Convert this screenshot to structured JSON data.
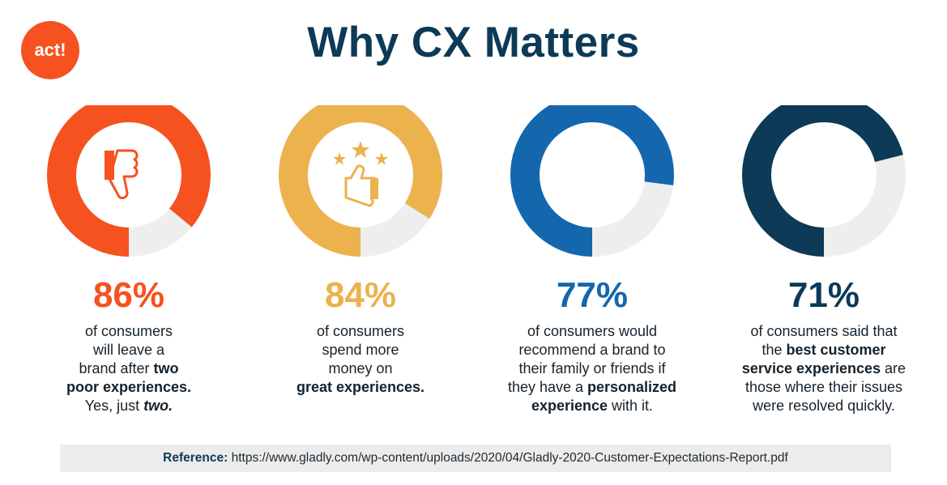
{
  "brand": {
    "logo_text": "act!",
    "logo_color": "#f5521f"
  },
  "title": "Why CX Matters",
  "chart_data": {
    "type": "donut",
    "title": "Why CX Matters",
    "track_color": "#eeeeee",
    "series": [
      {
        "value": 86,
        "label": "86%",
        "color": "#f5521f",
        "icon": "thumbs-down-icon"
      },
      {
        "value": 84,
        "label": "84%",
        "color": "#ebb24e",
        "icon": "thumbs-up-stars-icon"
      },
      {
        "value": 77,
        "label": "77%",
        "color": "#1467ad",
        "icon": "user-circle-icon"
      },
      {
        "value": 71,
        "label": "71%",
        "color": "#0c3a57",
        "icon": "award-ribbon-icon"
      }
    ]
  },
  "descriptions": [
    [
      {
        "t": "of consumers"
      },
      {
        "br": true
      },
      {
        "t": "will leave a"
      },
      {
        "br": true
      },
      {
        "t": "brand after "
      },
      {
        "b": "two"
      },
      {
        "br": true
      },
      {
        "b": "poor experiences."
      },
      {
        "br": true
      },
      {
        "t": "Yes, just "
      },
      {
        "bi": "two."
      }
    ],
    [
      {
        "t": "of consumers"
      },
      {
        "br": true
      },
      {
        "t": "spend more"
      },
      {
        "br": true
      },
      {
        "t": "money on"
      },
      {
        "br": true
      },
      {
        "b": "great experiences."
      }
    ],
    [
      {
        "t": "of consumers would"
      },
      {
        "br": true
      },
      {
        "t": "recommend a brand to"
      },
      {
        "br": true
      },
      {
        "t": "their family or friends if"
      },
      {
        "br": true
      },
      {
        "t": "they have a "
      },
      {
        "b": "personalized"
      },
      {
        "br": true
      },
      {
        "b": "experience"
      },
      {
        "t": " with it."
      }
    ],
    [
      {
        "t": "of consumers said that"
      },
      {
        "br": true
      },
      {
        "t": "the "
      },
      {
        "b": "best customer"
      },
      {
        "br": true
      },
      {
        "b": "service experiences"
      },
      {
        "t": " are"
      },
      {
        "br": true
      },
      {
        "t": "those where their issues"
      },
      {
        "br": true
      },
      {
        "t": "were resolved quickly."
      }
    ]
  ],
  "reference": {
    "label": "Reference:",
    "url": " https://www.gladly.com/wp-content/uploads/2020/04/Gladly-2020-Customer-Expectations-Report.pdf"
  }
}
